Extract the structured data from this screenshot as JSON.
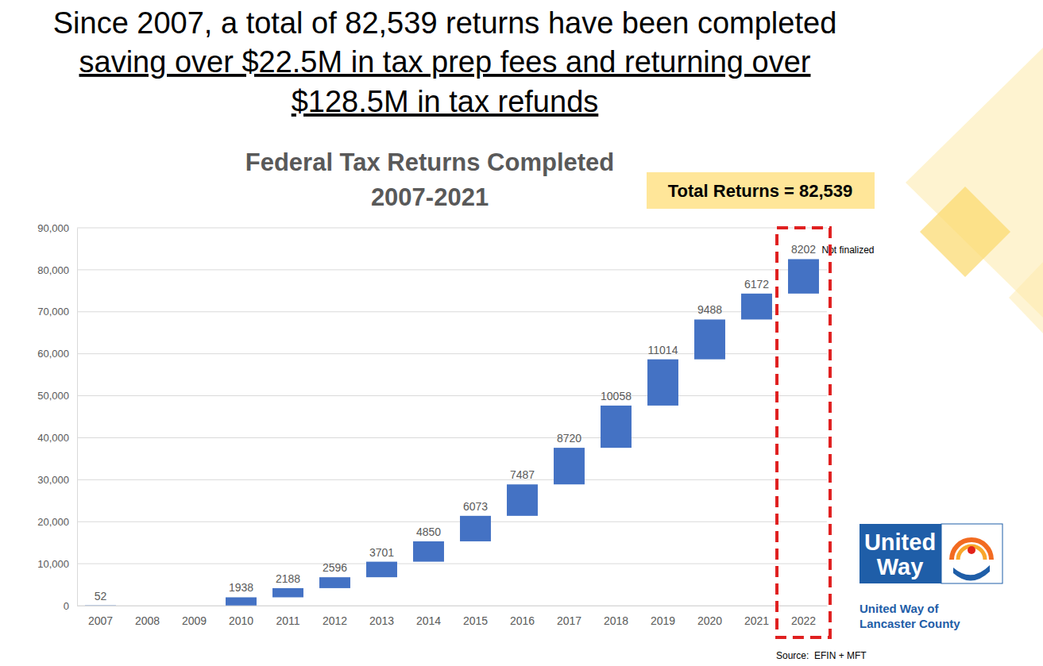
{
  "header": {
    "lines": [
      "Since 2007, a total of 82,539 returns have been completed",
      "saving over $22.5M in tax prep fees and returning over",
      "$128.5M in tax refunds"
    ]
  },
  "chart_data": {
    "type": "waterfall",
    "title": "Federal Tax Returns Completed",
    "subtitle": "2007-2021",
    "categories": [
      "2007",
      "2008",
      "2009",
      "2010",
      "2011",
      "2012",
      "2013",
      "2014",
      "2015",
      "2016",
      "2017",
      "2018",
      "2019",
      "2020",
      "2021",
      "2022"
    ],
    "values": [
      52,
      null,
      null,
      1938,
      2188,
      2596,
      3701,
      4850,
      6073,
      7487,
      8720,
      10058,
      11014,
      9488,
      6172,
      8202
    ],
    "color": "#4472c4",
    "ylim": [
      0,
      90000
    ],
    "yticks": [
      0,
      {
        "value": 10000,
        "label": "10,000"
      },
      {
        "value": 20000,
        "label": "20,000"
      },
      {
        "value": 30000,
        "label": "30,000"
      },
      {
        "value": 40000,
        "label": "40,000"
      },
      {
        "value": 50000,
        "label": "50,000"
      },
      {
        "value": 60000,
        "label": "60,000"
      },
      {
        "value": 70000,
        "label": "70,000"
      },
      {
        "value": 80000,
        "label": "80,000"
      },
      {
        "value": 90000,
        "label": "90,000"
      }
    ],
    "grid": true,
    "data_labels": true,
    "annotations": [
      "Total Returns = 82,539",
      "Not finalized"
    ]
  },
  "logo": {
    "lines": [
      "United",
      "Way"
    ],
    "caption": [
      "United Way of",
      "Lancaster County"
    ]
  },
  "source": "Source:  EFIN + MFT"
}
